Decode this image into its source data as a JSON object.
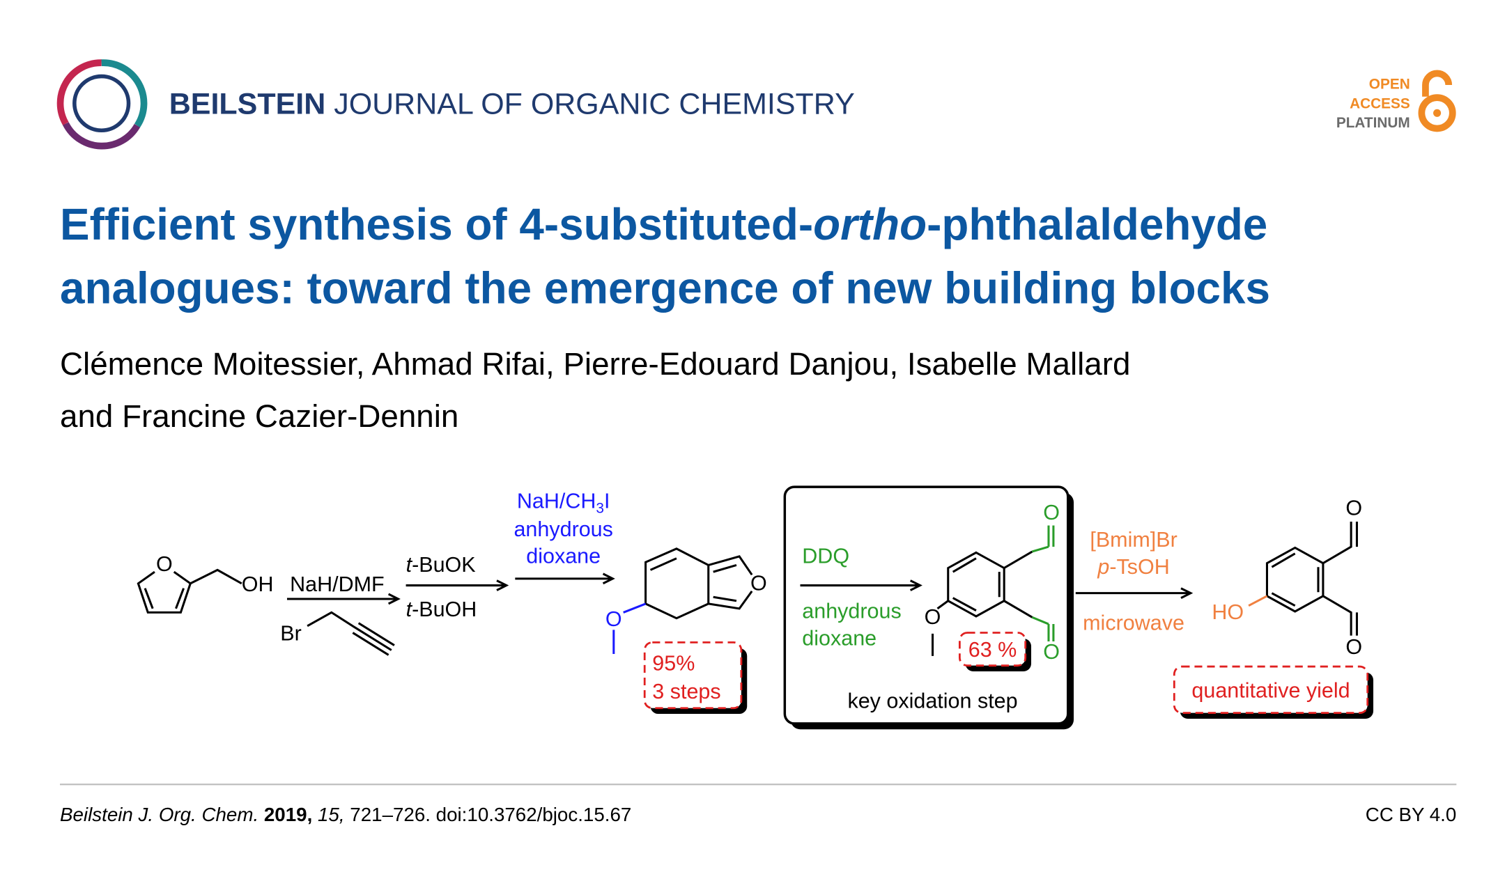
{
  "header": {
    "journal_bold": "BEILSTEIN",
    "journal_rest": "JOURNAL OF ORGANIC CHEMISTRY",
    "badge": [
      "OPEN",
      "ACCESS",
      "PLATINUM"
    ]
  },
  "title": {
    "part1": "Efficient synthesis of 4-substituted-",
    "italic": "ortho",
    "part2": "-phthalaldehyde",
    "line2": "analogues: toward the emergence of new building blocks"
  },
  "authors": [
    "Clémence Moitessier, Ahmad Rifai, Pierre-Edouard Danjou, Isabelle Mallard",
    "and Francine Cazier-Dennin"
  ],
  "scheme": {
    "start": {
      "ring_o": "O",
      "oh": "OH"
    },
    "step1": {
      "reagent": "NaH/DMF",
      "br": "Br"
    },
    "step2": {
      "top_italic": "t",
      "top_rest": "-BuOK",
      "bottom_italic": "t",
      "bottom_rest": "-BuOH"
    },
    "step3": {
      "reagent_a": "NaH/CH",
      "reagent_sub": "3",
      "reagent_b": "I",
      "line2": "anhydrous",
      "line3": "dioxane"
    },
    "product1": {
      "ring_o": "O",
      "ome_o": "O",
      "yield": "95%",
      "steps": "3 steps"
    },
    "step4": {
      "reagent": "DDQ",
      "line2": "anhydrous",
      "line3": "dioxane",
      "box_label": "key oxidation step"
    },
    "product2": {
      "o_top": "O",
      "o_bottom": "O",
      "ome_o": "O",
      "yield": "63 %"
    },
    "step5": {
      "reagent": "[Bmim]Br",
      "acid_italic": "p",
      "acid_rest": "-TsOH",
      "condition": "microwave"
    },
    "product3": {
      "o_top": "O",
      "o_bottom": "O",
      "ho": "HO",
      "yield": "quantitative yield"
    }
  },
  "footer": {
    "journal": "Beilstein J. Org. Chem.",
    "year": "2019,",
    "volume": "15,",
    "rest": "721–726. doi:10.3762/bjoc.15.67",
    "license": "CC BY 4.0"
  }
}
